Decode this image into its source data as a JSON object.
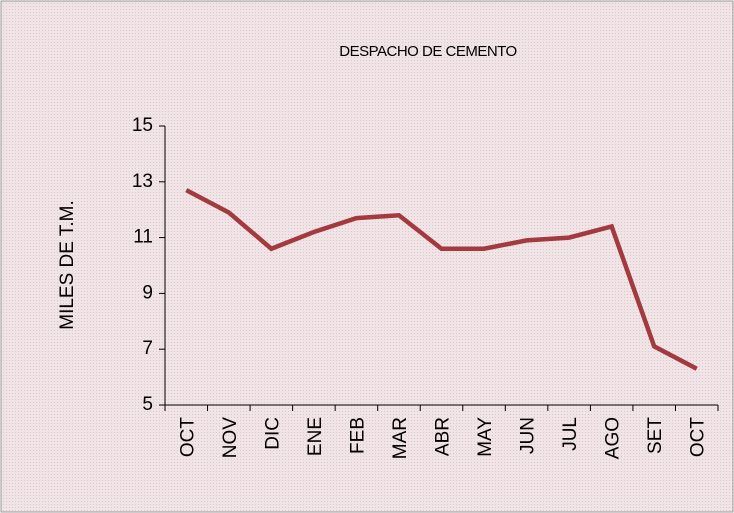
{
  "chart_data": {
    "type": "line",
    "title": "DESPACHO DE CEMENTO",
    "y_label": "MILES DE T.M.",
    "categories": [
      "OCT",
      "NOV",
      "DIC",
      "ENE",
      "FEB",
      "MAR",
      "ABR",
      "MAY",
      "JUN",
      "JUL",
      "AGO",
      "SET",
      "OCT"
    ],
    "series": [
      {
        "name": "Despacho",
        "color": "#a33a40",
        "values": [
          12.7,
          11.9,
          10.6,
          11.2,
          11.7,
          11.8,
          10.6,
          10.6,
          10.9,
          11.0,
          11.4,
          7.1,
          6.3
        ]
      }
    ],
    "ylim": [
      5,
      15
    ],
    "yticks": [
      5,
      7,
      9,
      11,
      13,
      15
    ],
    "grid": false
  }
}
